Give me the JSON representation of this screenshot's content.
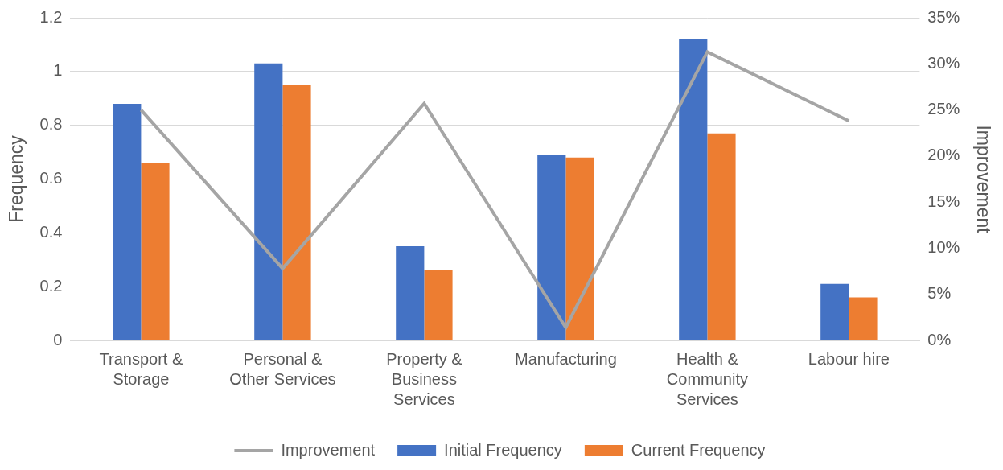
{
  "chart_data": {
    "type": "bar",
    "categories": [
      "Transport & Storage",
      "Personal & Other Services",
      "Property & Business Services",
      "Manufacturing",
      "Health & Community Services",
      "Labour hire"
    ],
    "series": [
      {
        "name": "Initial Frequency",
        "color": "#4472c4",
        "values": [
          0.88,
          1.03,
          0.35,
          0.69,
          1.12,
          0.21
        ]
      },
      {
        "name": "Current Frequency",
        "color": "#ed7d31",
        "values": [
          0.66,
          0.95,
          0.26,
          0.68,
          0.77,
          0.16
        ]
      },
      {
        "name": "Improvement",
        "color": "#a5a5a5",
        "type": "line",
        "axis": "y2",
        "values": [
          25,
          7.8,
          25.7,
          1.4,
          31.3,
          23.8
        ]
      }
    ],
    "y_label": "Frequency",
    "y2_label": "Improvement",
    "ylim": [
      0,
      1.2
    ],
    "yticks": [
      0,
      0.2,
      0.4,
      0.6,
      0.8,
      1,
      1.2
    ],
    "y2lim": [
      0,
      35
    ],
    "y2ticks": [
      {
        "value": 0,
        "label": "0%"
      },
      {
        "value": 5,
        "label": "5%"
      },
      {
        "value": 10,
        "label": "10%"
      },
      {
        "value": 15,
        "label": "15%"
      },
      {
        "value": 20,
        "label": "20%"
      },
      {
        "value": 25,
        "label": "25%"
      },
      {
        "value": 30,
        "label": "30%"
      },
      {
        "value": 35,
        "label": "35%"
      }
    ],
    "grid": true,
    "legend": "bottom"
  }
}
